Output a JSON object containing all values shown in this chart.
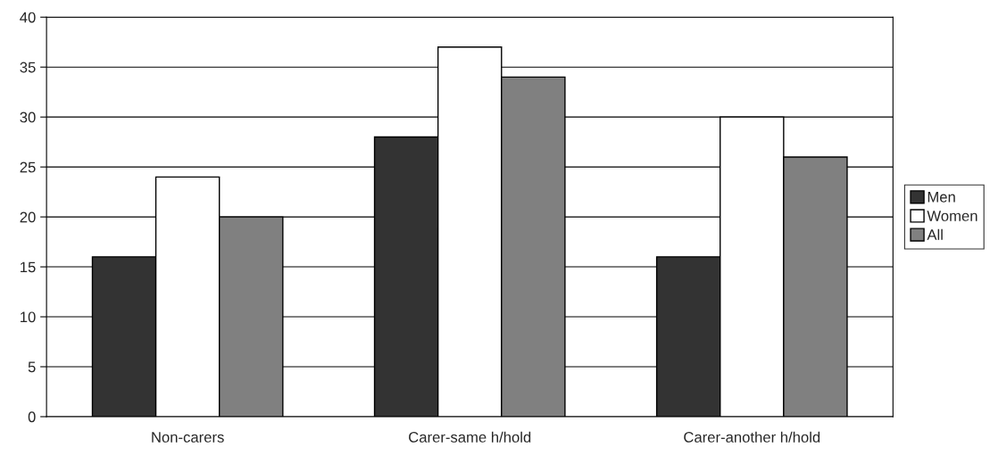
{
  "chart_data": {
    "type": "bar",
    "categories": [
      "Non-carers",
      "Carer-same h/hold",
      "Carer-another h/hold"
    ],
    "series": [
      {
        "name": "Men",
        "color": "#333333",
        "values": [
          16,
          28,
          16
        ]
      },
      {
        "name": "Women",
        "color": "#ffffff",
        "values": [
          24,
          37,
          30
        ]
      },
      {
        "name": "All",
        "color": "#808080",
        "values": [
          20,
          34,
          26
        ]
      }
    ],
    "ylim": [
      0,
      40
    ],
    "yticks": [
      0,
      5,
      10,
      15,
      20,
      25,
      30,
      35,
      40
    ],
    "grid": "y",
    "legend": "right"
  }
}
